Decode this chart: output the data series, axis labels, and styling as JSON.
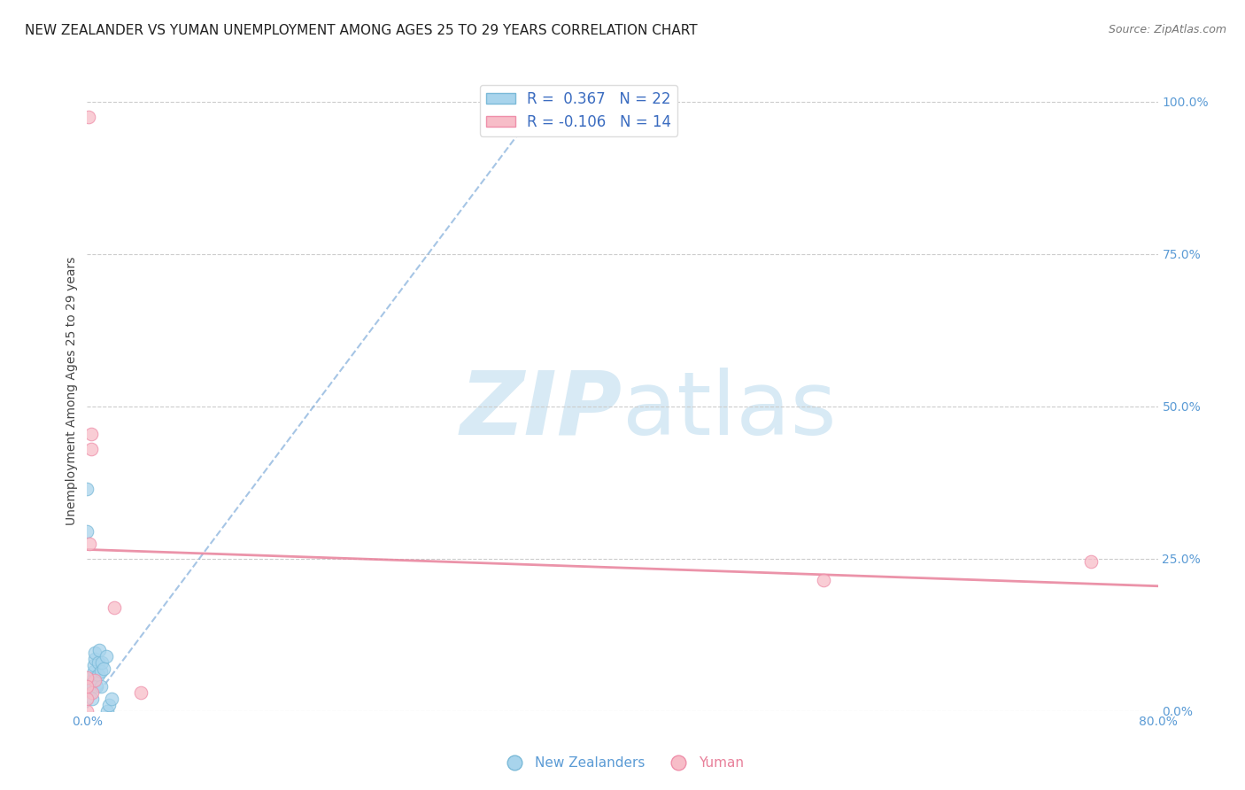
{
  "title": "NEW ZEALANDER VS YUMAN UNEMPLOYMENT AMONG AGES 25 TO 29 YEARS CORRELATION CHART",
  "source": "Source: ZipAtlas.com",
  "ylabel": "Unemployment Among Ages 25 to 29 years",
  "xlim": [
    0.0,
    0.8
  ],
  "ylim": [
    0.0,
    1.05
  ],
  "xticks": [
    0.0,
    0.2,
    0.4,
    0.6,
    0.8
  ],
  "xtick_labels": [
    "0.0%",
    "",
    "",
    "",
    "80.0%"
  ],
  "ytick_labels_right": [
    "100.0%",
    "75.0%",
    "50.0%",
    "25.0%",
    "0.0%"
  ],
  "yticks": [
    1.0,
    0.75,
    0.5,
    0.25,
    0.0
  ],
  "nz_R": 0.367,
  "nz_N": 22,
  "yuman_R": -0.106,
  "yuman_N": 14,
  "nz_color": "#A8D4EC",
  "nz_edge_color": "#7BBAD8",
  "yuman_color": "#F7BDC8",
  "yuman_edge_color": "#EF8FAA",
  "nz_trend_color": "#6B9FD4",
  "yuman_trend_color": "#E8809A",
  "grid_color": "#CCCCCC",
  "watermark_color": "#D8EAF5",
  "watermark_text_zip": "ZIP",
  "watermark_text_atlas": "atlas",
  "background_color": "#FFFFFF",
  "nz_points_x": [
    0.0,
    0.0,
    0.002,
    0.003,
    0.004,
    0.005,
    0.005,
    0.005,
    0.006,
    0.006,
    0.007,
    0.008,
    0.008,
    0.009,
    0.01,
    0.01,
    0.011,
    0.012,
    0.014,
    0.015,
    0.016,
    0.018
  ],
  "nz_points_y": [
    0.365,
    0.295,
    0.035,
    0.045,
    0.02,
    0.055,
    0.065,
    0.075,
    0.085,
    0.095,
    0.04,
    0.06,
    0.08,
    0.1,
    0.04,
    0.065,
    0.08,
    0.07,
    0.09,
    0.0,
    0.01,
    0.02
  ],
  "yuman_points_x": [
    0.001,
    0.002,
    0.003,
    0.003,
    0.004,
    0.006,
    0.02,
    0.04,
    0.0,
    0.0,
    0.0,
    0.55,
    0.75,
    0.0
  ],
  "yuman_points_y": [
    0.975,
    0.275,
    0.43,
    0.455,
    0.03,
    0.05,
    0.17,
    0.03,
    0.02,
    0.055,
    0.04,
    0.215,
    0.245,
    0.0
  ],
  "nz_trend_x": [
    0.0,
    0.33
  ],
  "nz_trend_y": [
    0.005,
    0.97
  ],
  "yuman_trend_x": [
    0.0,
    0.8
  ],
  "yuman_trend_y": [
    0.265,
    0.205
  ],
  "marker_size": 110,
  "title_fontsize": 11,
  "label_fontsize": 10,
  "tick_fontsize": 10,
  "legend_fontsize": 12,
  "axis_tick_color": "#5B9BD5"
}
